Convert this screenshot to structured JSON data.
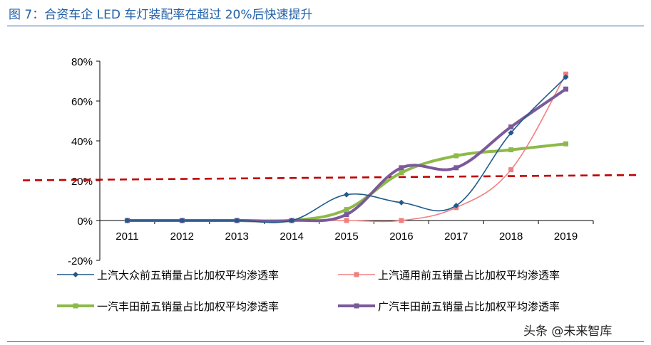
{
  "figure": {
    "title": "图 7：合资车企 LED 车灯装配率在超过 20%后快速提升"
  },
  "watermark": "头条 @未来智库",
  "chart_data": {
    "type": "line",
    "categories": [
      "2011",
      "2012",
      "2013",
      "2014",
      "2015",
      "2016",
      "2017",
      "2018",
      "2019"
    ],
    "ylim": [
      -20,
      80
    ],
    "yticks": [
      "80%",
      "60%",
      "40%",
      "20%",
      "0%",
      "-20%"
    ],
    "ytick_values": [
      80,
      60,
      40,
      20,
      0,
      -20
    ],
    "xlabel": "",
    "ylabel": "",
    "grid": false,
    "legend_position": "bottom",
    "reference_line": {
      "value": 20,
      "style": "dashed",
      "color": "#c00000"
    },
    "series": [
      {
        "name": "上汽大众前五销量占比加权平均渗透率",
        "color": "#1f5a8c",
        "marker": "diamond",
        "width": 1.6,
        "values": [
          0,
          0,
          0,
          0,
          13,
          9,
          7.5,
          44,
          72
        ]
      },
      {
        "name": "上汽通用前五销量占比加权平均渗透率",
        "color": "#f08080",
        "marker": "square",
        "width": 1.6,
        "values": [
          0,
          0,
          0,
          0,
          0,
          0,
          6.5,
          25.5,
          73.5
        ]
      },
      {
        "name": "一汽丰田前五销量占比加权平均渗透率",
        "color": "#8db94a",
        "marker": "square",
        "width": 4,
        "values": [
          0,
          0,
          0,
          0,
          5.5,
          24,
          32.5,
          35.5,
          38.5
        ]
      },
      {
        "name": "广汽丰田前五销量占比加权平均渗透率",
        "color": "#7b5a9a",
        "marker": "square",
        "width": 4,
        "values": [
          0,
          0,
          0,
          0,
          3,
          26.5,
          26.5,
          47,
          66
        ]
      }
    ]
  }
}
